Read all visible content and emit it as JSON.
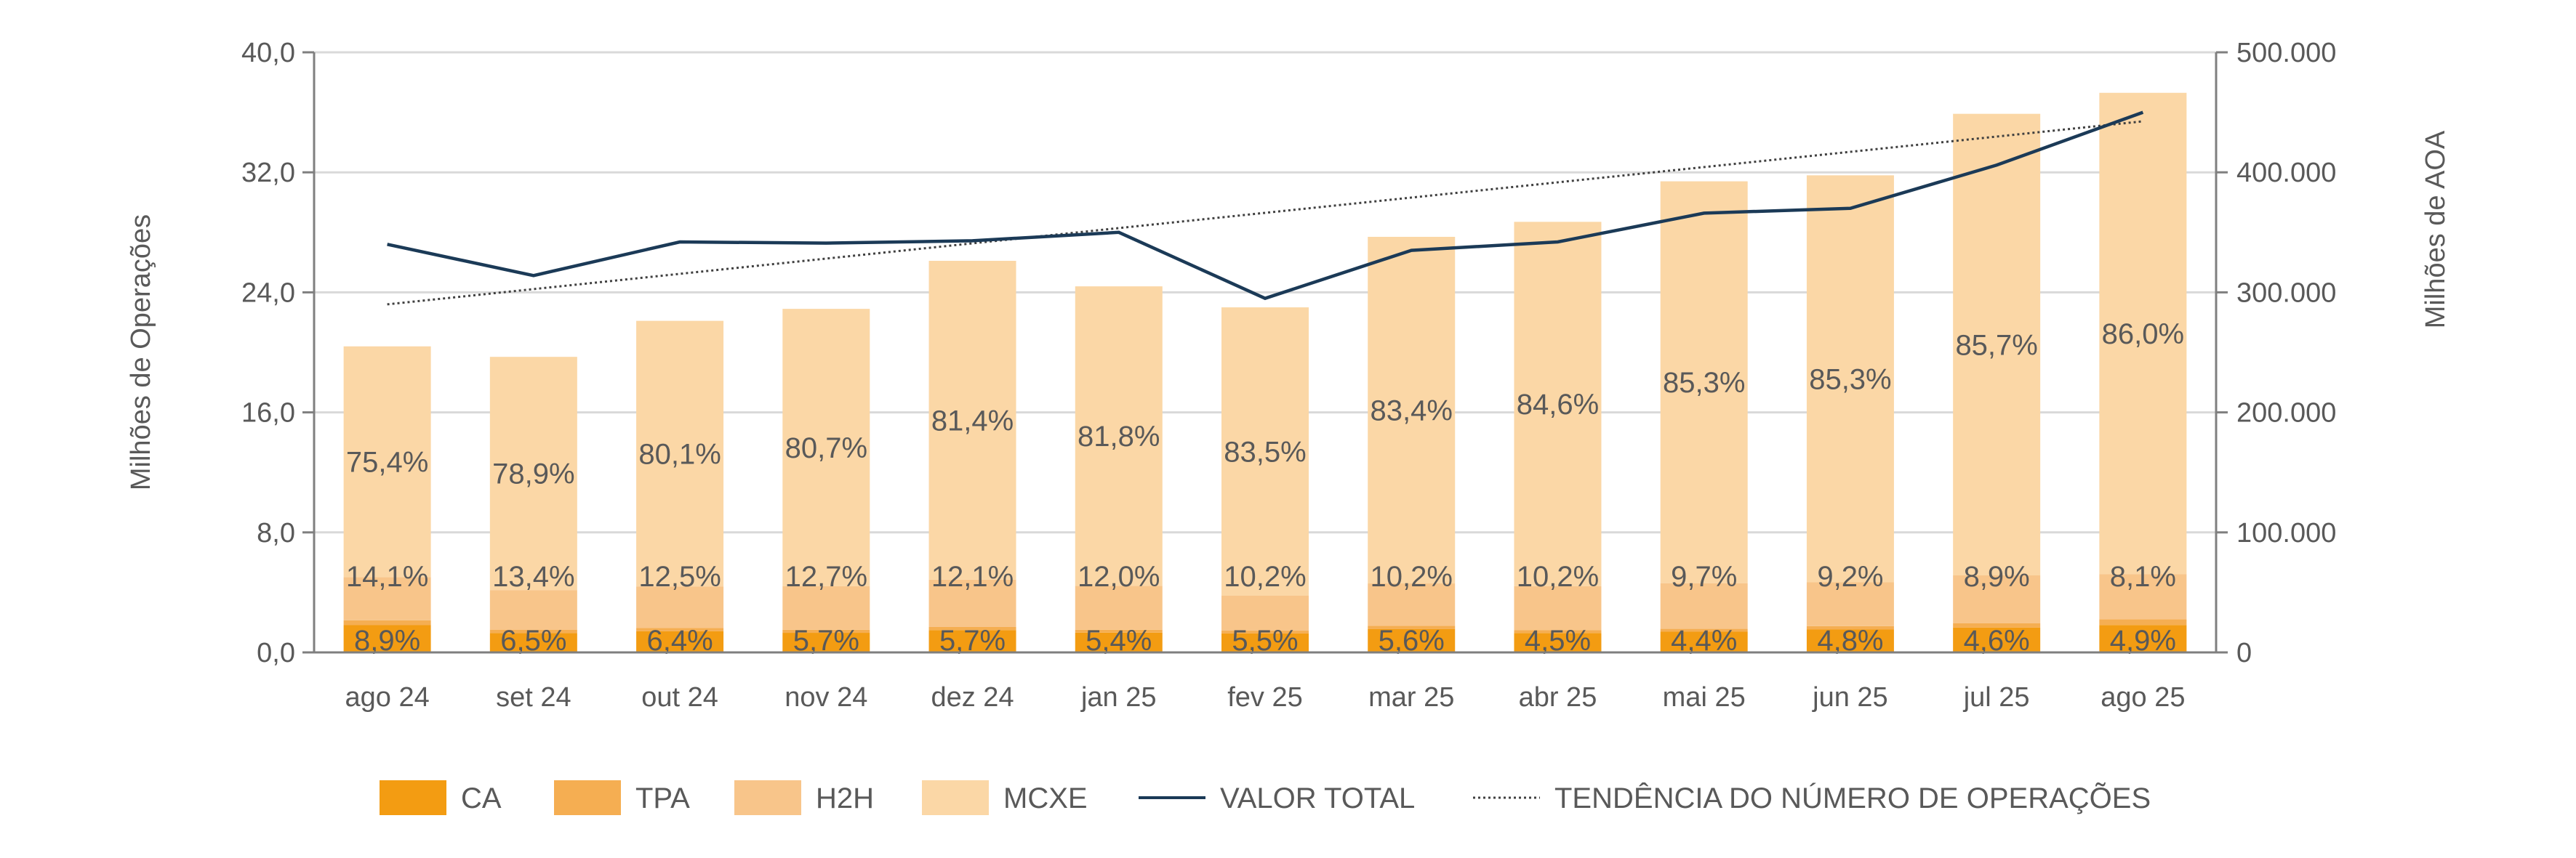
{
  "chart_data": {
    "type": "bar",
    "stacked": true,
    "categories": [
      "ago 24",
      "set 24",
      "out 24",
      "nov 24",
      "dez 24",
      "jan 25",
      "fev 25",
      "mar 25",
      "abr 25",
      "mai 25",
      "jun 25",
      "jul 25",
      "ago 25"
    ],
    "totals": [
      20.4,
      19.7,
      22.1,
      22.9,
      26.1,
      24.4,
      23.0,
      27.7,
      28.7,
      31.4,
      31.8,
      35.9,
      37.3
    ],
    "series": [
      {
        "name": "CA",
        "color": "#F39C12",
        "percent": [
          8.9,
          6.5,
          6.4,
          5.7,
          5.7,
          5.4,
          5.5,
          5.6,
          4.5,
          4.4,
          4.8,
          4.6,
          4.9
        ],
        "labels": [
          "8,9%",
          "6,5%",
          "6,4%",
          "5,7%",
          "5,7%",
          "5,4%",
          "5,5%",
          "5,6%",
          "4,5%",
          "4,4%",
          "4,8%",
          "4,6%",
          "4,9%"
        ]
      },
      {
        "name": "TPA",
        "color": "#F5AE52",
        "percent": [
          1.6,
          1.2,
          1.0,
          0.9,
          0.8,
          0.8,
          0.8,
          0.8,
          0.7,
          0.6,
          0.7,
          0.8,
          1.0
        ],
        "labels": []
      },
      {
        "name": "H2H",
        "color": "#F8C58A",
        "percent": [
          14.1,
          13.4,
          12.5,
          12.7,
          12.1,
          12.0,
          10.2,
          10.2,
          10.2,
          9.7,
          9.2,
          8.9,
          8.1
        ],
        "labels": [
          "14,1%",
          "13,4%",
          "12,5%",
          "12,7%",
          "12,1%",
          "12,0%",
          "10,2%",
          "10,2%",
          "10,2%",
          "9,7%",
          "9,2%",
          "8,9%",
          "8,1%"
        ]
      },
      {
        "name": "MCXE",
        "color": "#FBD7A6",
        "percent": [
          75.4,
          78.9,
          80.1,
          80.7,
          81.4,
          81.8,
          83.5,
          83.4,
          84.6,
          85.3,
          85.3,
          85.7,
          86.0
        ],
        "labels": [
          "75,4%",
          "78,9%",
          "80,1%",
          "80,7%",
          "81,4%",
          "81,8%",
          "83,5%",
          "83,4%",
          "84,6%",
          "85,3%",
          "85,3%",
          "85,7%",
          "86,0%"
        ]
      }
    ],
    "line": {
      "name": "VALOR TOTAL",
      "color": "#1B3A57",
      "axis": "right",
      "values": [
        340000,
        314000,
        342000,
        341000,
        343000,
        350000,
        295000,
        335000,
        342000,
        366000,
        370000,
        406000,
        450000
      ]
    },
    "trend": {
      "name": "TENDÊNCIA DO NÚMERO DE OPERAÇÕES",
      "color": "#404040",
      "axis": "left",
      "start": 23.2,
      "end": 35.4
    },
    "left_axis": {
      "label": "Milhões de Operações",
      "ylim": [
        0,
        40
      ],
      "ticks": [
        "0,0",
        "8,0",
        "16,0",
        "24,0",
        "32,0",
        "40,0"
      ]
    },
    "right_axis": {
      "label": "Milhões de AOA",
      "ylim": [
        0,
        500000
      ],
      "ticks": [
        "0",
        "100.000",
        "200.000",
        "300.000",
        "400.000",
        "500.000"
      ]
    },
    "grid": true,
    "legend": {
      "position": "bottom",
      "items": [
        "CA",
        "TPA",
        "H2H",
        "MCXE",
        "VALOR TOTAL",
        "TENDÊNCIA DO NÚMERO DE OPERAÇÕES"
      ]
    }
  }
}
